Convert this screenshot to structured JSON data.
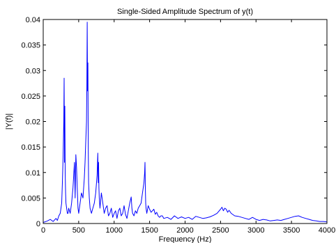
{
  "chart_data": {
    "type": "line",
    "title": "Single-Sided Amplitude Spectrum of y(t)",
    "xlabel": "Frequency (Hz)",
    "ylabel": "|Y(f)|",
    "xlim": [
      0,
      4000
    ],
    "ylim": [
      0,
      0.04
    ],
    "x_ticks": [
      0,
      500,
      1000,
      1500,
      2000,
      2500,
      3000,
      3500,
      4000
    ],
    "x_tick_labels": [
      "0",
      "500",
      "1000",
      "1500",
      "2000",
      "2500",
      "3000",
      "3500",
      "4000"
    ],
    "y_ticks": [
      0,
      0.005,
      0.01,
      0.015,
      0.02,
      0.025,
      0.03,
      0.035,
      0.04
    ],
    "y_tick_labels": [
      "0",
      "0.005",
      "0.01",
      "0.015",
      "0.02",
      "0.025",
      "0.03",
      "0.035",
      "0.04"
    ],
    "grid": false,
    "line_color": "#0000ff",
    "series": [
      {
        "x": [
          0,
          60,
          100,
          140,
          180,
          200,
          220,
          240,
          260,
          270,
          280,
          290,
          295,
          300,
          305,
          310,
          315,
          320,
          330,
          340,
          350,
          360,
          380,
          400,
          420,
          440,
          450,
          460,
          470,
          480,
          490,
          500,
          520,
          540,
          560,
          580,
          590,
          600,
          610,
          615,
          620,
          625,
          630,
          635,
          640,
          650,
          660,
          680,
          700,
          720,
          740,
          760,
          770,
          775,
          780,
          785,
          790,
          800,
          820,
          840,
          860,
          880,
          900,
          920,
          940,
          960,
          980,
          1000,
          1020,
          1040,
          1060,
          1080,
          1100,
          1120,
          1140,
          1160,
          1180,
          1200,
          1220,
          1240,
          1250,
          1260,
          1280,
          1300,
          1320,
          1340,
          1360,
          1380,
          1400,
          1420,
          1430,
          1435,
          1440,
          1445,
          1450,
          1460,
          1480,
          1500,
          1520,
          1540,
          1560,
          1580,
          1600,
          1620,
          1640,
          1660,
          1680,
          1700,
          1750,
          1800,
          1850,
          1900,
          1950,
          2000,
          2050,
          2100,
          2150,
          2200,
          2250,
          2300,
          2350,
          2400,
          2450,
          2500,
          2520,
          2540,
          2560,
          2580,
          2600,
          2620,
          2650,
          2700,
          2750,
          2800,
          2850,
          2900,
          2950,
          3000,
          3050,
          3100,
          3150,
          3200,
          3250,
          3300,
          3350,
          3400,
          3450,
          3500,
          3550,
          3600,
          3650,
          3700,
          3750,
          3800,
          3850,
          3900,
          3950,
          4000
        ],
        "y": [
          0.0002,
          0.0005,
          0.0008,
          0.0004,
          0.001,
          0.0006,
          0.0015,
          0.002,
          0.004,
          0.008,
          0.013,
          0.02,
          0.0285,
          0.012,
          0.023,
          0.01,
          0.006,
          0.004,
          0.003,
          0.002,
          0.002,
          0.003,
          0.002,
          0.004,
          0.007,
          0.012,
          0.005,
          0.0135,
          0.011,
          0.007,
          0.003,
          0.002,
          0.004,
          0.006,
          0.005,
          0.009,
          0.012,
          0.016,
          0.02,
          0.027,
          0.0395,
          0.026,
          0.0315,
          0.015,
          0.008,
          0.005,
          0.003,
          0.002,
          0.003,
          0.004,
          0.006,
          0.0095,
          0.0138,
          0.008,
          0.012,
          0.007,
          0.005,
          0.003,
          0.006,
          0.004,
          0.002,
          0.003,
          0.0035,
          0.0015,
          0.002,
          0.003,
          0.0012,
          0.002,
          0.0025,
          0.001,
          0.0025,
          0.003,
          0.0015,
          0.002,
          0.0035,
          0.0018,
          0.001,
          0.0025,
          0.004,
          0.0052,
          0.003,
          0.002,
          0.0015,
          0.0025,
          0.002,
          0.003,
          0.0035,
          0.004,
          0.006,
          0.008,
          0.01,
          0.012,
          0.007,
          0.004,
          0.003,
          0.002,
          0.0035,
          0.0028,
          0.0022,
          0.0025,
          0.0028,
          0.0018,
          0.0022,
          0.0015,
          0.0012,
          0.0015,
          0.0015,
          0.001,
          0.0012,
          0.0008,
          0.0015,
          0.001,
          0.0013,
          0.001,
          0.0012,
          0.0008,
          0.0014,
          0.0012,
          0.001,
          0.0011,
          0.0013,
          0.0016,
          0.002,
          0.0028,
          0.0032,
          0.0025,
          0.003,
          0.0028,
          0.0022,
          0.0026,
          0.002,
          0.0015,
          0.0014,
          0.0012,
          0.001,
          0.0008,
          0.0012,
          0.0008,
          0.0006,
          0.0008,
          0.0007,
          0.0005,
          0.0006,
          0.0007,
          0.0006,
          0.0008,
          0.001,
          0.0012,
          0.0014,
          0.0015,
          0.0012,
          0.001,
          0.0008,
          0.0006,
          0.0005,
          0.0004,
          0.0004,
          0.0003
        ]
      }
    ]
  }
}
